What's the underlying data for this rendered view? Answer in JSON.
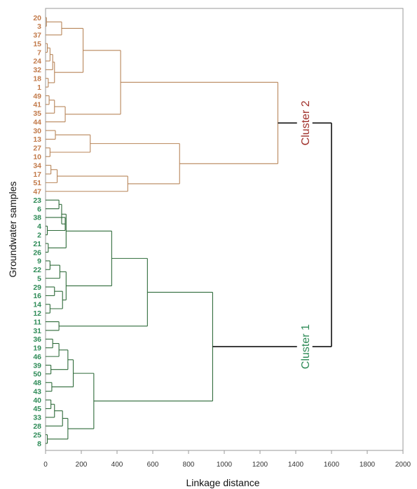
{
  "chart_data": {
    "type": "dendrogram",
    "xlabel": "Linkage distance",
    "ylabel": "Groundwater samples",
    "xlim": [
      0,
      2000
    ],
    "xticks": [
      "0",
      "200",
      "400",
      "600",
      "800",
      "1000",
      "1200",
      "1400",
      "1600",
      "1800",
      "2000"
    ],
    "grid": false,
    "colors": {
      "cluster2": "#b8865a",
      "cluster1": "#2f6b3a",
      "root": "#111111",
      "cluster2_leaf": "#c27a4a",
      "cluster1_leaf": "#2e8b57",
      "cluster2_label": "#a0302a",
      "cluster1_label": "#2e8b57"
    },
    "cluster_labels": [
      {
        "id": "cluster2",
        "text": "Cluster 2"
      },
      {
        "id": "cluster1",
        "text": "Cluster 1"
      }
    ],
    "leaves": [
      "20",
      "3",
      "37",
      "15",
      "7",
      "24",
      "32",
      "18",
      "1",
      "49",
      "41",
      "35",
      "44",
      "30",
      "13",
      "27",
      "10",
      "34",
      "17",
      "51",
      "47",
      "23",
      "6",
      "38",
      "4",
      "2",
      "21",
      "26",
      "9",
      "22",
      "5",
      "29",
      "16",
      "14",
      "12",
      "11",
      "31",
      "36",
      "19",
      "46",
      "39",
      "50",
      "48",
      "43",
      "40",
      "45",
      "33",
      "28",
      "25",
      "8"
    ],
    "merges": [
      {
        "id": "a1",
        "children": [
          "20",
          "3"
        ],
        "height": 5,
        "cluster": "cluster2"
      },
      {
        "id": "a2",
        "children": [
          "a1",
          "37"
        ],
        "height": 90,
        "cluster": "cluster2"
      },
      {
        "id": "a3",
        "children": [
          "15",
          "7"
        ],
        "height": 10,
        "cluster": "cluster2"
      },
      {
        "id": "a4",
        "children": [
          "a3",
          "24"
        ],
        "height": 25,
        "cluster": "cluster2"
      },
      {
        "id": "a5",
        "children": [
          "a4",
          "32"
        ],
        "height": 40,
        "cluster": "cluster2"
      },
      {
        "id": "a6",
        "children": [
          "18",
          "1"
        ],
        "height": 15,
        "cluster": "cluster2"
      },
      {
        "id": "a7",
        "children": [
          "a5",
          "a6"
        ],
        "height": 50,
        "cluster": "cluster2"
      },
      {
        "id": "a8",
        "children": [
          "a2",
          "a7"
        ],
        "height": 210,
        "cluster": "cluster2"
      },
      {
        "id": "a9",
        "children": [
          "49",
          "41"
        ],
        "height": 20,
        "cluster": "cluster2"
      },
      {
        "id": "a10",
        "children": [
          "a9",
          "35"
        ],
        "height": 50,
        "cluster": "cluster2"
      },
      {
        "id": "a11",
        "children": [
          "a10",
          "44"
        ],
        "height": 110,
        "cluster": "cluster2"
      },
      {
        "id": "a12",
        "children": [
          "a8",
          "a11"
        ],
        "height": 420,
        "cluster": "cluster2"
      },
      {
        "id": "a13",
        "children": [
          "30",
          "13"
        ],
        "height": 55,
        "cluster": "cluster2"
      },
      {
        "id": "a14",
        "children": [
          "27",
          "10"
        ],
        "height": 25,
        "cluster": "cluster2"
      },
      {
        "id": "a15",
        "children": [
          "a13",
          "a14"
        ],
        "height": 250,
        "cluster": "cluster2"
      },
      {
        "id": "a16",
        "children": [
          "34",
          "17"
        ],
        "height": 30,
        "cluster": "cluster2"
      },
      {
        "id": "a17",
        "children": [
          "a16",
          "51"
        ],
        "height": 65,
        "cluster": "cluster2"
      },
      {
        "id": "a18",
        "children": [
          "a17",
          "47"
        ],
        "height": 460,
        "cluster": "cluster2"
      },
      {
        "id": "a19",
        "children": [
          "a15",
          "a18"
        ],
        "height": 750,
        "cluster": "cluster2"
      },
      {
        "id": "a20",
        "children": [
          "a12",
          "a19"
        ],
        "height": 1300,
        "cluster": "cluster2"
      },
      {
        "id": "b1",
        "children": [
          "23",
          "6"
        ],
        "height": 75,
        "cluster": "cluster1"
      },
      {
        "id": "b2",
        "children": [
          "4",
          "2"
        ],
        "height": 10,
        "cluster": "cluster1"
      },
      {
        "id": "b3",
        "children": [
          "b2",
          "38"
        ],
        "height": 110,
        "cluster": "cluster1"
      },
      {
        "id": "b4",
        "children": [
          "b1",
          "b3"
        ],
        "height": 90,
        "cluster": "cluster1"
      },
      {
        "id": "b5",
        "children": [
          "21",
          "26"
        ],
        "height": 15,
        "cluster": "cluster1"
      },
      {
        "id": "b6",
        "children": [
          "b4",
          "b5"
        ],
        "height": 115,
        "cluster": "cluster1"
      },
      {
        "id": "b7",
        "children": [
          "9",
          "22"
        ],
        "height": 25,
        "cluster": "cluster1"
      },
      {
        "id": "b8",
        "children": [
          "b7",
          "5"
        ],
        "height": 80,
        "cluster": "cluster1"
      },
      {
        "id": "b9",
        "children": [
          "29",
          "16"
        ],
        "height": 50,
        "cluster": "cluster1"
      },
      {
        "id": "b10",
        "children": [
          "14",
          "12"
        ],
        "height": 25,
        "cluster": "cluster1"
      },
      {
        "id": "b11",
        "children": [
          "b9",
          "b10"
        ],
        "height": 95,
        "cluster": "cluster1"
      },
      {
        "id": "b12",
        "children": [
          "b8",
          "b11"
        ],
        "height": 115,
        "cluster": "cluster1"
      },
      {
        "id": "b13",
        "children": [
          "b6",
          "b12"
        ],
        "height": 370,
        "cluster": "cluster1"
      },
      {
        "id": "b14",
        "children": [
          "11",
          "31"
        ],
        "height": 75,
        "cluster": "cluster1"
      },
      {
        "id": "b15",
        "children": [
          "b13",
          "b14"
        ],
        "height": 570,
        "cluster": "cluster1"
      },
      {
        "id": "b16",
        "children": [
          "36",
          "19"
        ],
        "height": 40,
        "cluster": "cluster1"
      },
      {
        "id": "b17",
        "children": [
          "b16",
          "46"
        ],
        "height": 75,
        "cluster": "cluster1"
      },
      {
        "id": "b18",
        "children": [
          "39",
          "50"
        ],
        "height": 30,
        "cluster": "cluster1"
      },
      {
        "id": "b19",
        "children": [
          "b17",
          "b18"
        ],
        "height": 125,
        "cluster": "cluster1"
      },
      {
        "id": "b20",
        "children": [
          "48",
          "43"
        ],
        "height": 35,
        "cluster": "cluster1"
      },
      {
        "id": "b21",
        "children": [
          "b19",
          "b20"
        ],
        "height": 155,
        "cluster": "cluster1"
      },
      {
        "id": "b22",
        "children": [
          "40",
          "45"
        ],
        "height": 30,
        "cluster": "cluster1"
      },
      {
        "id": "b23",
        "children": [
          "b22",
          "33"
        ],
        "height": 50,
        "cluster": "cluster1"
      },
      {
        "id": "b24",
        "children": [
          "b23",
          "28"
        ],
        "height": 95,
        "cluster": "cluster1"
      },
      {
        "id": "b25",
        "children": [
          "25",
          "8"
        ],
        "height": 10,
        "cluster": "cluster1"
      },
      {
        "id": "b26",
        "children": [
          "b24",
          "b25"
        ],
        "height": 125,
        "cluster": "cluster1"
      },
      {
        "id": "b27",
        "children": [
          "b21",
          "b26"
        ],
        "height": 270,
        "cluster": "cluster1"
      },
      {
        "id": "b28",
        "children": [
          "b15",
          "b27"
        ],
        "height": 935,
        "cluster": "cluster1"
      },
      {
        "id": "r1",
        "children": [
          "a20",
          "b28"
        ],
        "height": 1600,
        "cluster": "root"
      }
    ]
  }
}
